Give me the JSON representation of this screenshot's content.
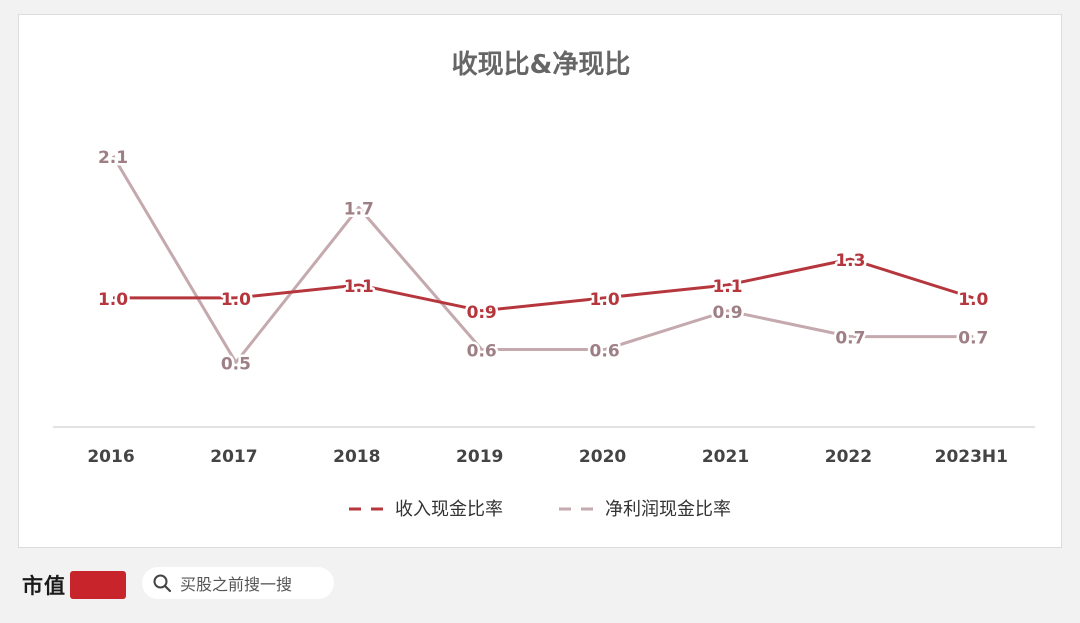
{
  "chart_data": {
    "type": "line",
    "title": "收现比&净现比",
    "categories": [
      "2016",
      "2017",
      "2018",
      "2019",
      "2020",
      "2021",
      "2022",
      "2023H1"
    ],
    "series": [
      {
        "name": "收入现金比率",
        "values": [
          1.0,
          1.0,
          1.1,
          0.9,
          1.0,
          1.1,
          1.3,
          1.0
        ],
        "labels": [
          "1.0",
          "1.0",
          "1.1",
          "0.9",
          "1.0",
          "1.1",
          "1.3",
          "1.0"
        ],
        "color": "#b5373d",
        "dashed_legend": true
      },
      {
        "name": "净利润现金比率",
        "values": [
          2.1,
          0.5,
          1.7,
          0.6,
          0.6,
          0.9,
          0.7,
          0.7
        ],
        "labels": [
          "2.1",
          "0.5",
          "1.7",
          "0.6",
          "0.6",
          "0.9",
          "0.7",
          "0.7"
        ],
        "color": "#c4a9ae",
        "dashed_legend": true
      }
    ],
    "ylim": [
      0,
      2.3
    ],
    "grid": false,
    "legend_position": "bottom-center"
  },
  "footer": {
    "brand_text": "市值",
    "search_icon": "search-icon",
    "search_text": "买股之前搜一搜",
    "brand_color": "#c8242b"
  }
}
